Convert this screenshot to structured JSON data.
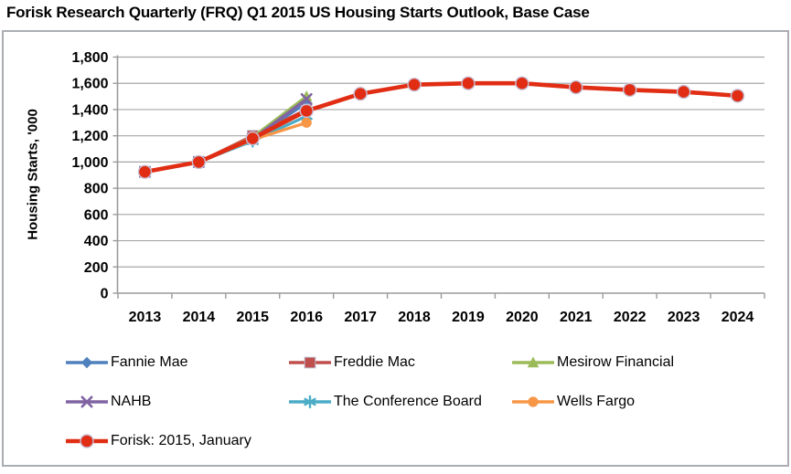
{
  "title": "Forisk Research Quarterly (FRQ) Q1 2015 US Housing Starts Outlook, Base Case",
  "chart_data": {
    "type": "line",
    "title": "Forisk Research Quarterly (FRQ) Q1 2015 US Housing Starts Outlook, Base Case",
    "xlabel": "",
    "ylabel": "Housing Starts, '000",
    "ylim": [
      0,
      1800
    ],
    "yticks": [
      0,
      200,
      400,
      600,
      800,
      1000,
      1200,
      1400,
      1600,
      1800
    ],
    "grid": true,
    "legend_position": "bottom",
    "categories": [
      "2013",
      "2014",
      "2015",
      "2016",
      "2017",
      "2018",
      "2019",
      "2020",
      "2021",
      "2022",
      "2023",
      "2024"
    ],
    "series": [
      {
        "name": "Fannie Mae",
        "color": "#4F81BD",
        "marker": "diamond",
        "values": [
          925,
          1000,
          1180,
          1450
        ]
      },
      {
        "name": "Freddie Mac",
        "color": "#C0504D",
        "marker": "square",
        "values": [
          925,
          1000,
          1200,
          1400
        ]
      },
      {
        "name": "Mesirow Financial",
        "color": "#9BBB59",
        "marker": "triangle",
        "values": [
          925,
          1000,
          1190,
          1500
        ]
      },
      {
        "name": "NAHB",
        "color": "#8064A2",
        "marker": "x",
        "values": [
          925,
          1000,
          1175,
          1480
        ]
      },
      {
        "name": "The Conference Board",
        "color": "#4BACC6",
        "marker": "asterisk",
        "values": [
          925,
          1000,
          1160,
          1350
        ]
      },
      {
        "name": "Wells Fargo",
        "color": "#F79646",
        "marker": "circle",
        "values": [
          925,
          1000,
          1170,
          1300
        ]
      },
      {
        "name": "Forisk: 2015, January",
        "color": "#E02D13",
        "marker": "circle",
        "marker_outline": "#C8C0D8",
        "emphasized": true,
        "values": [
          925,
          1000,
          1180,
          1390,
          1520,
          1590,
          1600,
          1600,
          1570,
          1550,
          1535,
          1505
        ]
      }
    ],
    "colors": {
      "axis": "#9a9a9a",
      "gridline": "#a6a6a6",
      "frame_border": "#aaadb2",
      "text": "#000000"
    }
  }
}
